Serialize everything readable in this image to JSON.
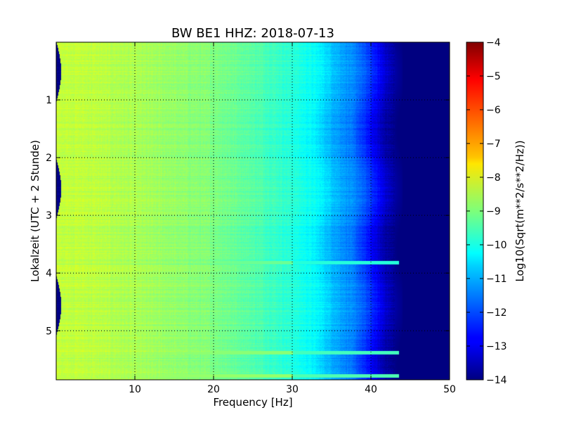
{
  "chart_data": {
    "type": "heatmap",
    "title": "BW BE1 HHZ: 2018-07-13",
    "xlabel": "Frequency [Hz]",
    "ylabel": "Lokalzeit (UTC + 2 Stunde)",
    "colorbar_label": "Log10(Sqrt(m**2/s**2/Hz))",
    "xlim": [
      0,
      50
    ],
    "ylim": [
      0,
      5.85
    ],
    "y_inverted": true,
    "x_ticks": [
      10,
      20,
      30,
      40,
      50
    ],
    "x_tick_labels": [
      "10",
      "20",
      "30",
      "40",
      "50"
    ],
    "y_ticks": [
      1,
      2,
      3,
      4,
      5
    ],
    "y_tick_labels": [
      "1",
      "2",
      "3",
      "4",
      "5"
    ],
    "grid": true,
    "colormap": "jet",
    "clim": [
      -14,
      -4
    ],
    "colorbar_ticks": [
      -4,
      -5,
      -6,
      -7,
      -8,
      -9,
      -10,
      -11,
      -12,
      -13,
      -14
    ],
    "colorbar_tick_labels": [
      "−4",
      "−5",
      "−6",
      "−7",
      "−8",
      "−9",
      "−10",
      "−11",
      "−12",
      "−13",
      "−14"
    ],
    "spectrum_profile": {
      "frequency_hz": [
        0,
        5,
        10,
        15,
        20,
        25,
        30,
        33,
        35,
        38,
        40,
        41,
        42,
        43,
        44,
        50
      ],
      "log10_amplitude": [
        -8.3,
        -8.4,
        -8.6,
        -8.8,
        -9.0,
        -9.4,
        -9.9,
        -10.3,
        -10.9,
        -11.6,
        -12.5,
        -13.0,
        -13.5,
        -13.8,
        -14.0,
        -14.0
      ]
    },
    "high_amplitude_bands_hours": [
      3.82,
      5.38,
      5.78
    ],
    "high_amplitude_band_values": [
      -9.6,
      -9.3,
      -9.2
    ]
  }
}
